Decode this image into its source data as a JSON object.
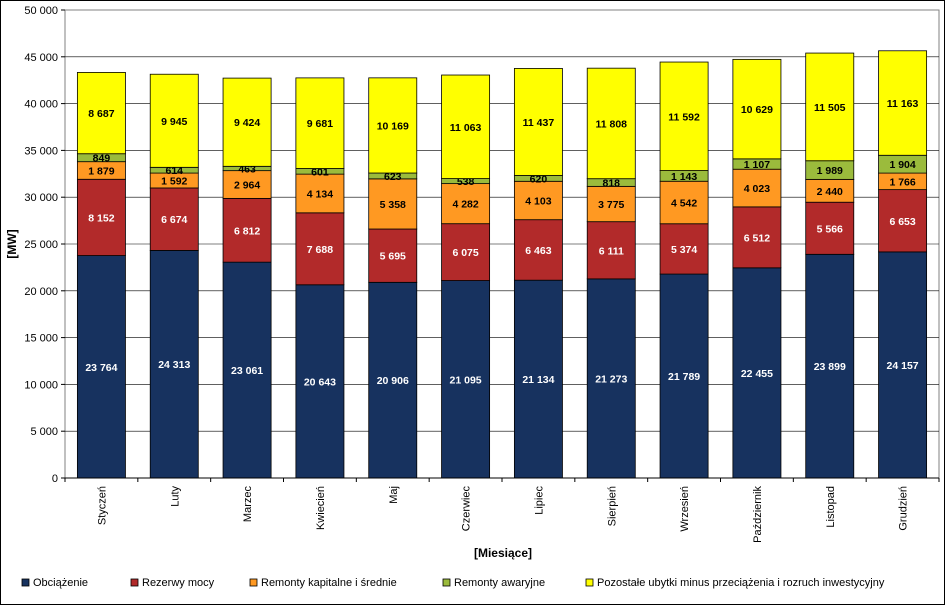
{
  "chart_data": {
    "type": "bar",
    "stacked": true,
    "title": "",
    "xlabel": "[Miesiące]",
    "ylabel": "[MW]",
    "ylim": [
      0,
      50000
    ],
    "yticks": [
      0,
      5000,
      10000,
      15000,
      20000,
      25000,
      30000,
      35000,
      40000,
      45000,
      50000
    ],
    "ytick_labels": [
      "0",
      "5 000",
      "10 000",
      "15 000",
      "20 000",
      "25 000",
      "30 000",
      "35 000",
      "40 000",
      "45 000",
      "50 000"
    ],
    "grid": "horizontal",
    "legend_position": "bottom",
    "categories": [
      "Styczeń",
      "Luty",
      "Marzec",
      "Kwiecień",
      "Maj",
      "Czerwiec",
      "Lipiec",
      "Sierpień",
      "Wrzesień",
      "Październik",
      "Listopad",
      "Grudzień"
    ],
    "series": [
      {
        "name": "Obciążenie",
        "color": "#17325f",
        "label_color": "#ffffff",
        "values": [
          23764,
          24313,
          23061,
          20643,
          20906,
          21095,
          21134,
          21273,
          21789,
          22455,
          23899,
          24157
        ],
        "labels": [
          "23 764",
          "24 313",
          "23 061",
          "20 643",
          "20 906",
          "21 095",
          "21 134",
          "21 273",
          "21 789",
          "22 455",
          "23 899",
          "24 157"
        ]
      },
      {
        "name": "Rezerwy mocy",
        "color": "#b22a2a",
        "label_color": "#ffffff",
        "values": [
          8152,
          6674,
          6812,
          7688,
          5695,
          6075,
          6463,
          6111,
          5374,
          6512,
          5566,
          6653
        ],
        "labels": [
          "8 152",
          "6 674",
          "6 812",
          "7 688",
          "5 695",
          "6 075",
          "6 463",
          "6 111",
          "5 374",
          "6 512",
          "5 566",
          "6 653"
        ]
      },
      {
        "name": "Remonty kapitalne i średnie",
        "color": "#ff9922",
        "label_color": "#000000",
        "values": [
          1879,
          1592,
          2964,
          4134,
          5358,
          4282,
          4103,
          3775,
          4542,
          4023,
          2440,
          1766
        ],
        "labels": [
          "1 879",
          "1 592",
          "2 964",
          "4 134",
          "5 358",
          "4 282",
          "4 103",
          "3 775",
          "4 542",
          "4 023",
          "2 440",
          "1 766"
        ]
      },
      {
        "name": "Remonty awaryjne",
        "color": "#9bbb3c",
        "label_color": "#000000",
        "values": [
          849,
          614,
          463,
          601,
          623,
          538,
          620,
          818,
          1143,
          1107,
          1989,
          1904
        ],
        "labels": [
          "849",
          "614",
          "463",
          "601",
          "623",
          "538",
          "620",
          "818",
          "1 143",
          "1 107",
          "1 989",
          "1 904"
        ]
      },
      {
        "name": "Pozostałe ubytki minus przeciążenia i rozruch inwestycyjny",
        "color": "#ffff00",
        "label_color": "#000000",
        "values": [
          8687,
          9945,
          9424,
          9681,
          10169,
          11063,
          11437,
          11808,
          11592,
          10629,
          11505,
          11163
        ],
        "labels": [
          "8 687",
          "9 945",
          "9 424",
          "9 681",
          "10 169",
          "11 063",
          "11 437",
          "11 808",
          "11 592",
          "10 629",
          "11 505",
          "11 163"
        ]
      }
    ]
  }
}
